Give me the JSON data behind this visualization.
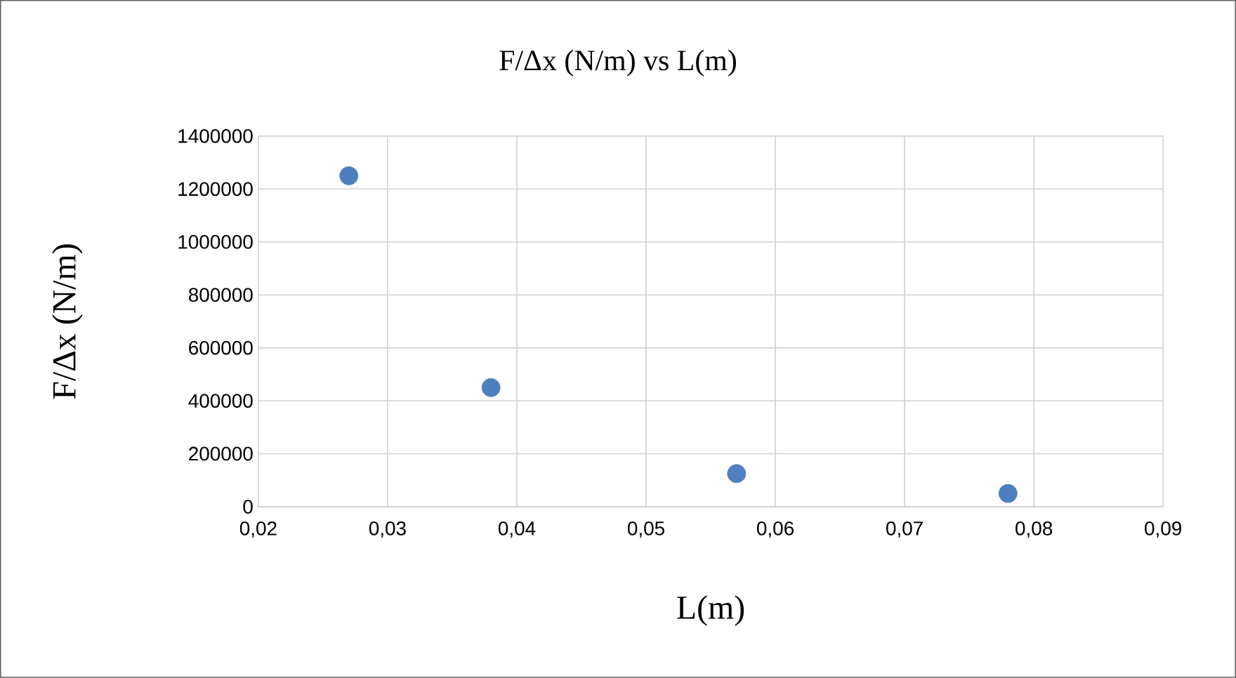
{
  "chart_data": {
    "type": "scatter",
    "title": "F/Δx (N/m) vs L(m)",
    "xlabel": "L(m)",
    "ylabel": "F/Δx (N/m)",
    "x": [
      0.027,
      0.038,
      0.057,
      0.078
    ],
    "series": [
      {
        "color": "#4f7fbf",
        "values": [
          1250000,
          450000,
          125000,
          50000
        ]
      }
    ],
    "xlim": [
      0.02,
      0.09
    ],
    "xticks": [
      {
        "value": 0.02,
        "label": "0,02"
      },
      {
        "value": 0.03,
        "label": "0,03"
      },
      {
        "value": 0.04,
        "label": "0,04"
      },
      {
        "value": 0.05,
        "label": "0,05"
      },
      {
        "value": 0.06,
        "label": "0,06"
      },
      {
        "value": 0.07,
        "label": "0,07"
      },
      {
        "value": 0.08,
        "label": "0,08"
      },
      {
        "value": 0.09,
        "label": "0,09"
      }
    ],
    "ylim": [
      0,
      1400000
    ],
    "yticks": [
      0,
      200000,
      400000,
      600000,
      800000,
      1000000,
      1200000,
      1400000
    ],
    "grid": true
  }
}
